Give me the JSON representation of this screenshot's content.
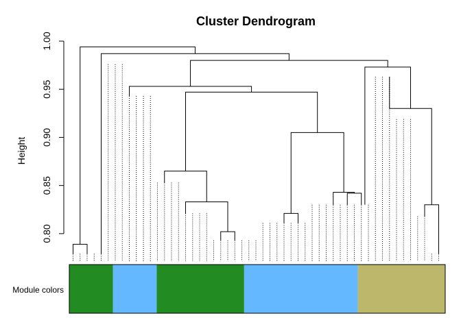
{
  "chart_data": {
    "type": "dendrogram",
    "title": "Cluster Dendrogram",
    "ylabel": "Height",
    "module_label": "Module colors",
    "ylim": [
      0.77,
      1.0
    ],
    "yticks": [
      0.8,
      0.85,
      0.9,
      0.95,
      1.0
    ],
    "ytick_labels": [
      "0.80",
      "0.85",
      "0.90",
      "0.95",
      "1.00"
    ],
    "grid": false,
    "leaf_count": 53,
    "merges": [
      {
        "id": "A",
        "left": 1,
        "right": 3,
        "height": 0.789
      },
      {
        "id": "M1",
        "left": 22,
        "right": 24,
        "height": 0.802
      },
      {
        "id": "M2",
        "left": 17,
        "right": "M1",
        "height": 0.833
      },
      {
        "id": "M3",
        "left": 14,
        "right": "M2",
        "height": 0.865
      },
      {
        "id": "C1",
        "left": 31,
        "right": 33,
        "height": 0.821
      },
      {
        "id": "D1",
        "left": 40,
        "right": 42,
        "height": 0.842
      },
      {
        "id": "D2",
        "left": 38,
        "right": "D1",
        "height": 0.843
      },
      {
        "id": "C2",
        "left": "C1",
        "right": "D2",
        "height": 0.905
      },
      {
        "id": "E",
        "left": "M3",
        "right": "C2",
        "height": 0.947
      },
      {
        "id": "F",
        "left": 9,
        "right": "E",
        "height": 0.953
      },
      {
        "id": "G1",
        "left": 51,
        "right": 53,
        "height": 0.83
      },
      {
        "id": "G2",
        "left": 46,
        "right": "G1",
        "height": 0.93
      },
      {
        "id": "G3",
        "left": 42.5,
        "right": "G2",
        "height": 0.973
      },
      {
        "id": "H",
        "left": "F",
        "right": "G3",
        "height": 0.98
      },
      {
        "id": "I",
        "left": 5,
        "right": "H",
        "height": 0.987
      },
      {
        "id": "J",
        "left": "A",
        "right": "I",
        "height": 0.994
      }
    ],
    "leaf_tops": [
      0.779,
      0.779,
      0.779,
      0.779,
      0.779,
      0.976,
      0.976,
      0.976,
      0.943,
      0.943,
      0.943,
      0.943,
      0.853,
      0.853,
      0.853,
      0.853,
      0.821,
      0.821,
      0.821,
      0.821,
      0.793,
      0.793,
      0.793,
      0.793,
      0.793,
      0.793,
      0.793,
      0.811,
      0.811,
      0.811,
      0.811,
      0.811,
      0.811,
      0.811,
      0.83,
      0.83,
      0.83,
      0.83,
      0.83,
      0.83,
      0.83,
      0.83,
      0.83,
      0.963,
      0.963,
      0.963,
      0.919,
      0.919,
      0.919,
      0.818,
      0.818,
      0.779,
      0.779
    ],
    "modules": [
      {
        "color": "#228B22",
        "from": 0,
        "to": 5
      },
      {
        "color": "#63B8FF",
        "from": 5,
        "to": 10
      },
      {
        "color": "#228B22",
        "from": 10,
        "to": 20
      },
      {
        "color": "#63B8FF",
        "from": 20,
        "to": 33
      },
      {
        "color": "#BDB76B",
        "from": 33,
        "to": 43
      }
    ],
    "module_total": 43
  }
}
